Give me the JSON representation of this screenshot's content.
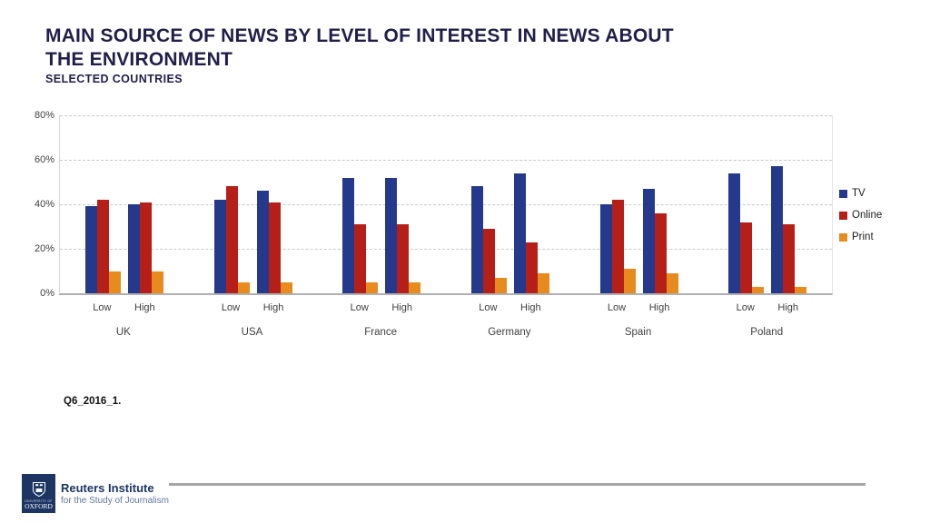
{
  "slide": {
    "title_line1": "MAIN SOURCE OF NEWS BY LEVEL OF INTEREST IN NEWS ABOUT",
    "title_line2": "THE ENVIRONMENT",
    "subtitle": "SELECTED COUNTRIES",
    "note": "Q6_2016_1.",
    "footer": {
      "logo_text_top": "UNIVERSITY OF",
      "logo_text_bottom": "OXFORD",
      "org_name": "Reuters Institute",
      "org_tagline": "for the Study of Journalism"
    }
  },
  "chart_data": {
    "type": "bar",
    "title": "MAIN SOURCE OF NEWS BY LEVEL OF INTEREST IN NEWS ABOUT THE ENVIRONMENT",
    "subtitle": "SELECTED COUNTRIES",
    "categories": [
      "UK",
      "USA",
      "France",
      "Germany",
      "Spain",
      "Poland"
    ],
    "subcategories": [
      "Low",
      "High"
    ],
    "series": [
      {
        "name": "TV",
        "color": "#24398C",
        "values": [
          [
            39,
            40
          ],
          [
            42,
            46
          ],
          [
            52,
            52
          ],
          [
            48,
            54
          ],
          [
            40,
            47
          ],
          [
            54,
            57
          ]
        ]
      },
      {
        "name": "Online",
        "color": "#B51F18",
        "values": [
          [
            42,
            41
          ],
          [
            48,
            41
          ],
          [
            31,
            31
          ],
          [
            29,
            23
          ],
          [
            42,
            36
          ],
          [
            32,
            31
          ]
        ]
      },
      {
        "name": "Print",
        "color": "#E88B1E",
        "values": [
          [
            10,
            10
          ],
          [
            5,
            5
          ],
          [
            5,
            5
          ],
          [
            7,
            9
          ],
          [
            11,
            9
          ],
          [
            3,
            3
          ]
        ]
      }
    ],
    "y_axis": {
      "min": 0,
      "max": 80,
      "tick_step": 20,
      "tick_labels": [
        "0%",
        "20%",
        "40%",
        "60%",
        "80%"
      ],
      "unit": "%"
    },
    "xlabel": "",
    "ylabel": "",
    "grid": "horizontal-dashed",
    "legend_position": "right"
  }
}
